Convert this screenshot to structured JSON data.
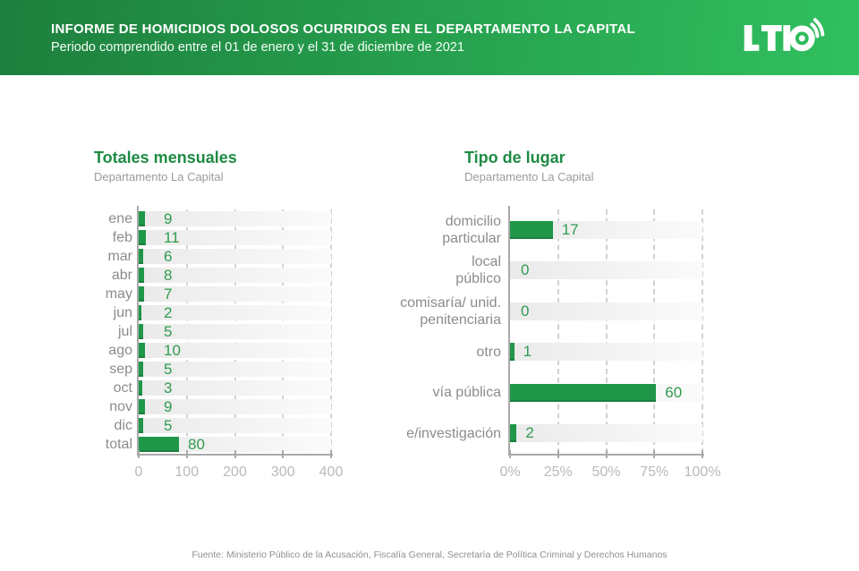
{
  "header": {
    "title": "INFORME DE HOMICIDIOS DOLOSOS OCURRIDOS EN EL DEPARTAMENTO LA CAPITAL",
    "subtitle": "Periodo comprendido entre el 01 de enero y el 31 de diciembre de 2021",
    "logo_text": "LT10"
  },
  "chart_data": [
    {
      "type": "bar",
      "orientation": "horizontal",
      "title": "Totales mensuales",
      "subtitle": "Departamento La Capital",
      "categories": [
        "ene",
        "feb",
        "mar",
        "abr",
        "may",
        "jun",
        "jul",
        "ago",
        "sep",
        "oct",
        "nov",
        "dic",
        "total"
      ],
      "values": [
        9,
        11,
        6,
        8,
        7,
        2,
        5,
        10,
        5,
        3,
        9,
        5,
        80
      ],
      "xlim": [
        0,
        400
      ],
      "xticks": [
        "0",
        "100",
        "200",
        "300",
        "400"
      ],
      "grid": "dashed-vertical",
      "bar_color": "#1f9648"
    },
    {
      "type": "bar",
      "orientation": "horizontal",
      "title": "Tipo de lugar",
      "subtitle": "Departamento La Capital",
      "categories": [
        "domicilio particular",
        "local público",
        "comisaría/ unid. penitenciaria",
        "otro",
        "vía pública",
        "e/investigación"
      ],
      "label_lines": [
        [
          "domicilio",
          "particular"
        ],
        [
          "local",
          "público"
        ],
        [
          "comisaría/ unid.",
          "penitenciaria"
        ],
        [
          "otro"
        ],
        [
          "vía pública"
        ],
        [
          "e/investigación"
        ]
      ],
      "values": [
        17,
        0,
        0,
        1,
        60,
        2
      ],
      "xlim": [
        0,
        80
      ],
      "xticks": [
        "0%",
        "25%",
        "50%",
        "75%",
        "100%"
      ],
      "tick_note": "percent of total (80 cases)",
      "grid": "dashed-vertical",
      "bar_color": "#1f9648"
    }
  ],
  "footer": {
    "source": "Fuente: Ministerio Público de la Acusación, Fiscalía General, Secretaría de Política Criminal y Derechos Humanos"
  },
  "colors": {
    "header_gradient_left": "#1d7f3d",
    "header_gradient_right": "#30c05f",
    "bar_green": "#1f9648",
    "title_green": "#1f8b45",
    "value_green": "#2f9b51",
    "label_gray": "#8c8c8c",
    "axis_gray": "#a9a9a9",
    "tick_label_gray": "#b9b9b9",
    "track_gradient_from": "#eaeaea",
    "track_gradient_to": "#fbfbfb"
  }
}
